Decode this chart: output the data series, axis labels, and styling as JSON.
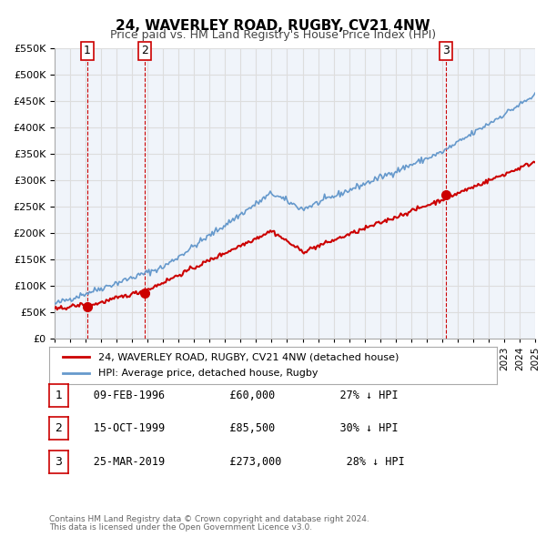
{
  "title": "24, WAVERLEY ROAD, RUGBY, CV21 4NW",
  "subtitle": "Price paid vs. HM Land Registry's House Price Index (HPI)",
  "legend_label_red": "24, WAVERLEY ROAD, RUGBY, CV21 4NW (detached house)",
  "legend_label_blue": "HPI: Average price, detached house, Rugby",
  "transactions": [
    {
      "num": 1,
      "date_str": "09-FEB-1996",
      "year": 1996.11,
      "price": 60000,
      "pct": "27%",
      "arrow": "↓"
    },
    {
      "num": 2,
      "date_str": "15-OCT-1999",
      "year": 1999.79,
      "price": 85500,
      "pct": "30%",
      "arrow": "↓"
    },
    {
      "num": 3,
      "date_str": "25-MAR-2019",
      "year": 2019.23,
      "price": 273000,
      "pct": "28%",
      "arrow": "↓"
    }
  ],
  "footnote1": "Contains HM Land Registry data © Crown copyright and database right 2024.",
  "footnote2": "This data is licensed under the Open Government Licence v3.0.",
  "red_color": "#cc0000",
  "blue_color": "#6699cc",
  "dot_color": "#cc0000",
  "vline_color": "#cc0000",
  "grid_color": "#dddddd",
  "bg_color": "#f0f4fa",
  "plot_bg": "#f0f4fa",
  "xlim": [
    1994,
    2025
  ],
  "ylim": [
    0,
    550000
  ],
  "yticks": [
    0,
    50000,
    100000,
    150000,
    200000,
    250000,
    300000,
    350000,
    400000,
    450000,
    500000,
    550000
  ]
}
